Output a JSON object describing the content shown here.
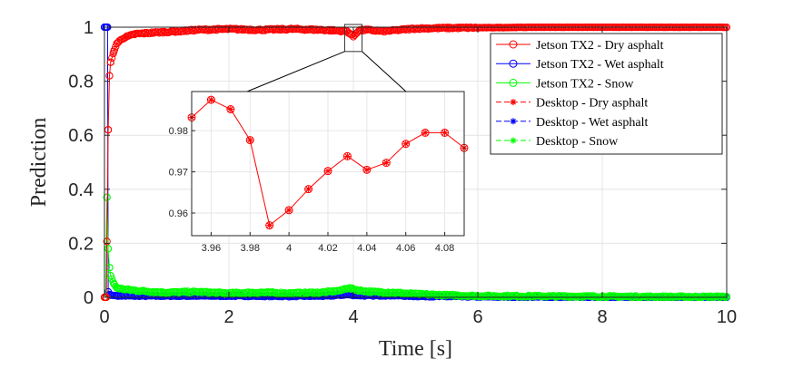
{
  "chart_data": [
    {
      "type": "line",
      "name": "main",
      "xlabel": "Time [s]",
      "ylabel": "Prediction",
      "xlim": [
        0,
        10
      ],
      "ylim": [
        0,
        1
      ],
      "xticks": [
        0,
        2,
        4,
        6,
        8,
        10
      ],
      "xtick_labels": [
        "0",
        "2",
        "4",
        "6",
        "8",
        "10"
      ],
      "yticks": [
        0,
        0.2,
        0.4,
        0.6,
        0.8,
        1
      ],
      "ytick_labels": [
        "0",
        "0.2",
        "0.4",
        "0.6",
        "0.8",
        "1"
      ],
      "grid": true,
      "legend_position": "top-right",
      "series": [
        {
          "name": "Jetson TX2 - Dry asphalt",
          "color": "#ff0000",
          "line": "solid",
          "marker": "circle",
          "x": [
            0,
            0.03,
            0.06,
            0.08,
            0.1,
            0.15,
            0.2,
            0.3,
            0.5,
            0.8,
            1.2,
            1.5,
            2,
            2.5,
            3,
            3.5,
            3.9,
            3.95,
            4.0,
            4.05,
            4.1,
            4.2,
            4.5,
            5,
            5.5,
            6,
            6.5,
            7,
            8,
            9,
            10
          ],
          "y": [
            0,
            0,
            0.62,
            0.82,
            0.87,
            0.91,
            0.94,
            0.96,
            0.975,
            0.98,
            0.985,
            0.99,
            0.993,
            0.99,
            0.993,
            0.99,
            0.985,
            0.975,
            0.965,
            0.98,
            0.988,
            0.99,
            0.985,
            0.995,
            0.997,
            0.998,
            0.999,
            1,
            1,
            1,
            1
          ]
        },
        {
          "name": "Jetson TX2 - Wet asphalt",
          "color": "#0000ff",
          "line": "solid",
          "marker": "circle",
          "x": [
            0,
            0.03,
            0.05,
            0.06,
            0.08,
            0.1,
            0.2,
            0.5,
            1,
            2,
            3,
            3.6,
            3.9,
            4.0,
            4.2,
            4.6,
            5,
            6,
            7,
            8,
            9,
            10
          ],
          "y": [
            1,
            1,
            1,
            0.02,
            0.01,
            0.008,
            0.006,
            0.005,
            0.005,
            0.005,
            0.004,
            0.005,
            0.01,
            0.008,
            0.006,
            0.007,
            0.004,
            0.002,
            0.001,
            0,
            0,
            0
          ]
        },
        {
          "name": "Jetson TX2 - Snow",
          "color": "#00ff00",
          "line": "solid",
          "marker": "circle",
          "x": [
            0,
            0.02,
            0.04,
            0.06,
            0.08,
            0.1,
            0.15,
            0.2,
            0.3,
            0.5,
            0.8,
            1,
            1.5,
            2,
            2.5,
            3,
            3.5,
            3.8,
            3.9,
            4.0,
            4.1,
            4.3,
            4.6,
            5,
            5.5,
            6,
            7,
            8,
            9,
            10
          ],
          "y": [
            0,
            0,
            0.37,
            0.18,
            0.11,
            0.08,
            0.05,
            0.035,
            0.03,
            0.025,
            0.02,
            0.018,
            0.02,
            0.015,
            0.018,
            0.015,
            0.018,
            0.025,
            0.035,
            0.03,
            0.025,
            0.02,
            0.018,
            0.012,
            0.008,
            0.005,
            0.004,
            0.003,
            0.002,
            0.002
          ]
        },
        {
          "name": "Desktop - Dry asphalt",
          "color": "#ff0000",
          "line": "dashed",
          "marker": "asterisk"
        },
        {
          "name": "Desktop - Wet asphalt",
          "color": "#0000ff",
          "line": "dashed",
          "marker": "asterisk"
        },
        {
          "name": "Desktop - Snow",
          "color": "#00ff00",
          "line": "dashed",
          "marker": "asterisk"
        }
      ]
    },
    {
      "type": "line",
      "name": "inset",
      "xlim": [
        3.95,
        4.09
      ],
      "ylim": [
        0.9545,
        0.9895
      ],
      "xticks": [
        3.96,
        3.98,
        4,
        4.02,
        4.04,
        4.06,
        4.08
      ],
      "xtick_labels": [
        "3.96",
        "3.98",
        "4",
        "4.02",
        "4.04",
        "4.06",
        "4.08"
      ],
      "yticks": [
        0.96,
        0.97,
        0.98
      ],
      "ytick_labels": [
        "0.96",
        "0.97",
        "0.98"
      ],
      "grid": true,
      "series": [
        {
          "name": "Jetson TX2 - Dry asphalt",
          "color": "#ff0000",
          "x": [
            3.95,
            3.95,
            3.96,
            3.97,
            3.98,
            3.99,
            4.0,
            4.01,
            4.02,
            4.03,
            4.04,
            4.05,
            4.06,
            4.07,
            4.08,
            4.09
          ],
          "y": [
            0.9815,
            0.9832,
            0.9875,
            0.9852,
            0.9777,
            0.957,
            0.9607,
            0.9658,
            0.9702,
            0.9738,
            0.9705,
            0.9722,
            0.9768,
            0.9795,
            0.9795,
            0.9758
          ]
        }
      ]
    }
  ]
}
